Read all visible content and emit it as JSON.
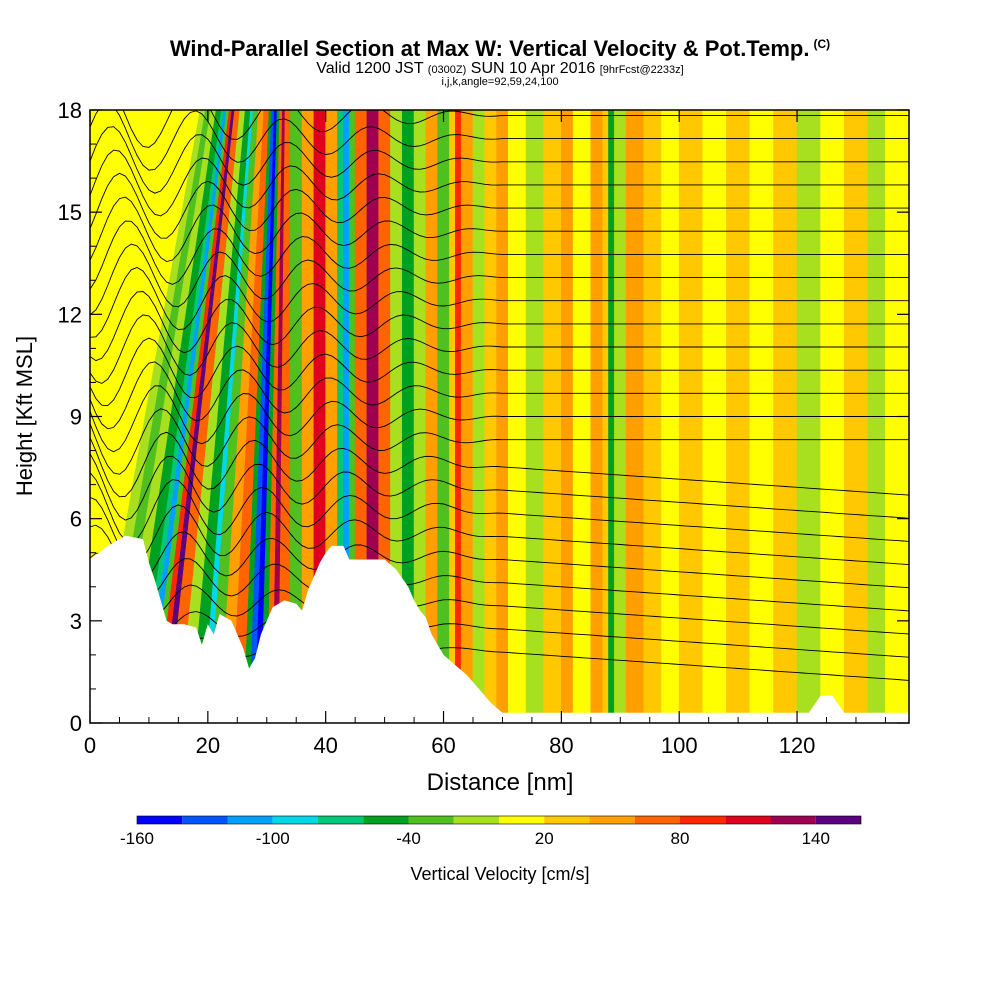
{
  "titles": {
    "main": "Wind-Parallel Section at Max W: Vertical Velocity & Pot.Temp.",
    "copyright": "(C)",
    "valid_prefix": "Valid 1200 JST",
    "utc": "(0300Z)",
    "valid_date": "SUN 10 Apr 2016",
    "forecast": "[9hrFcst@2233z]",
    "indices": "i,j,k,angle=92,59,24,100"
  },
  "chart_data": {
    "type": "heatmap",
    "xlabel": "Distance [nm]",
    "ylabel": "Height [Kft MSL]",
    "xlim": [
      0,
      139
    ],
    "ylim": [
      0,
      18
    ],
    "x_ticks": [
      "0",
      "20",
      "40",
      "60",
      "80",
      "100",
      "120"
    ],
    "y_ticks": [
      "0",
      "3",
      "6",
      "9",
      "12",
      "15",
      "18"
    ],
    "colorbar_label": "Vertical Velocity [cm/s]",
    "colorbar_ticks": [
      "-160",
      "-100",
      "-40",
      "20",
      "80",
      "140"
    ],
    "colorbar_range": [
      -160,
      160
    ],
    "colorbar_colors": [
      "#0000ff",
      "#0055ff",
      "#00a0ff",
      "#00d8e8",
      "#00c878",
      "#00a020",
      "#50c020",
      "#a8e020",
      "#ffff00",
      "#ffc800",
      "#ffa000",
      "#ff6400",
      "#ff2800",
      "#e00020",
      "#a00050",
      "#5a0080"
    ],
    "terrain_height_kft": [
      [
        0,
        4.8
      ],
      [
        3,
        5.2
      ],
      [
        6,
        5.5
      ],
      [
        9,
        5.4
      ],
      [
        10,
        4.7
      ],
      [
        11,
        4.2
      ],
      [
        12,
        3.6
      ],
      [
        13,
        3.0
      ],
      [
        14,
        2.9
      ],
      [
        16,
        2.9
      ],
      [
        18,
        2.8
      ],
      [
        19,
        2.3
      ],
      [
        20,
        2.9
      ],
      [
        21,
        2.6
      ],
      [
        22,
        3.2
      ],
      [
        24,
        3.0
      ],
      [
        25,
        2.6
      ],
      [
        26,
        2.2
      ],
      [
        27,
        1.6
      ],
      [
        28,
        1.9
      ],
      [
        29,
        2.6
      ],
      [
        30,
        3.0
      ],
      [
        31,
        3.4
      ],
      [
        33,
        3.6
      ],
      [
        35,
        3.5
      ],
      [
        36,
        3.3
      ],
      [
        37,
        3.9
      ],
      [
        38,
        4.3
      ],
      [
        39,
        4.7
      ],
      [
        40,
        5.0
      ],
      [
        41,
        5.2
      ],
      [
        43,
        5.2
      ],
      [
        44,
        4.8
      ],
      [
        50,
        4.8
      ],
      [
        52,
        4.5
      ],
      [
        54,
        4.0
      ],
      [
        55,
        3.6
      ],
      [
        56,
        3.3
      ],
      [
        57,
        3.1
      ],
      [
        58,
        2.6
      ],
      [
        59,
        2.3
      ],
      [
        60,
        2.0
      ],
      [
        62,
        1.7
      ],
      [
        64,
        1.4
      ],
      [
        66,
        1.0
      ],
      [
        68,
        0.6
      ],
      [
        70,
        0.3
      ],
      [
        75,
        0.3
      ],
      [
        80,
        0.3
      ],
      [
        122,
        0.3
      ],
      [
        124,
        0.8
      ],
      [
        126,
        0.8
      ],
      [
        128,
        0.3
      ],
      [
        139,
        0.3
      ]
    ],
    "vertical_velocity_bands": [
      {
        "x": 0,
        "w": -20
      },
      {
        "x": 2,
        "w": -40
      },
      {
        "x": 4,
        "w": -20
      },
      {
        "x": 6,
        "w": -50
      },
      {
        "x": 8,
        "w": -80
      },
      {
        "x": 9,
        "w": -120
      },
      {
        "x": 10,
        "w": -40
      },
      {
        "x": 11,
        "w": 80
      },
      {
        "x": 12,
        "w": 140
      },
      {
        "x": 13,
        "w": 60
      },
      {
        "x": 15,
        "w": -20
      },
      {
        "x": 17,
        "w": -60
      },
      {
        "x": 19,
        "w": -100
      },
      {
        "x": 20,
        "w": -40
      },
      {
        "x": 22,
        "w": 40
      },
      {
        "x": 24,
        "w": 60
      },
      {
        "x": 26,
        "w": -60
      },
      {
        "x": 27,
        "w": -140
      },
      {
        "x": 28,
        "w": -160
      },
      {
        "x": 29,
        "w": -60
      },
      {
        "x": 30,
        "w": 60
      },
      {
        "x": 31,
        "w": 120
      },
      {
        "x": 32,
        "w": 60
      },
      {
        "x": 34,
        "w": -40
      },
      {
        "x": 36,
        "w": 40
      },
      {
        "x": 38,
        "w": 100
      },
      {
        "x": 40,
        "w": 40
      },
      {
        "x": 42,
        "w": -80
      },
      {
        "x": 43,
        "w": -120
      },
      {
        "x": 44,
        "w": -40
      },
      {
        "x": 45,
        "w": 60
      },
      {
        "x": 47,
        "w": 120
      },
      {
        "x": 49,
        "w": 60
      },
      {
        "x": 51,
        "w": -20
      },
      {
        "x": 53,
        "w": -60
      },
      {
        "x": 55,
        "w": -20
      },
      {
        "x": 57,
        "w": 40
      },
      {
        "x": 59,
        "w": -40
      },
      {
        "x": 61,
        "w": 20
      },
      {
        "x": 62,
        "w": 80
      },
      {
        "x": 63,
        "w": 40
      },
      {
        "x": 65,
        "w": -20
      },
      {
        "x": 67,
        "w": 20
      },
      {
        "x": 69,
        "w": 40
      },
      {
        "x": 71,
        "w": 0
      },
      {
        "x": 74,
        "w": -20
      },
      {
        "x": 77,
        "w": 20
      },
      {
        "x": 80,
        "w": 40
      },
      {
        "x": 82,
        "w": 0
      },
      {
        "x": 85,
        "w": 40
      },
      {
        "x": 87,
        "w": 20
      },
      {
        "x": 88,
        "w": -60
      },
      {
        "x": 89,
        "w": -20
      },
      {
        "x": 91,
        "w": 40
      },
      {
        "x": 94,
        "w": 20
      },
      {
        "x": 97,
        "w": 0
      },
      {
        "x": 100,
        "w": 20
      },
      {
        "x": 104,
        "w": 0
      },
      {
        "x": 108,
        "w": 20
      },
      {
        "x": 112,
        "w": 0
      },
      {
        "x": 116,
        "w": 20
      },
      {
        "x": 120,
        "w": -20
      },
      {
        "x": 124,
        "w": 0
      },
      {
        "x": 128,
        "w": 20
      },
      {
        "x": 132,
        "w": -20
      },
      {
        "x": 135,
        "w": 0
      },
      {
        "x": 139,
        "w": 20
      }
    ]
  }
}
